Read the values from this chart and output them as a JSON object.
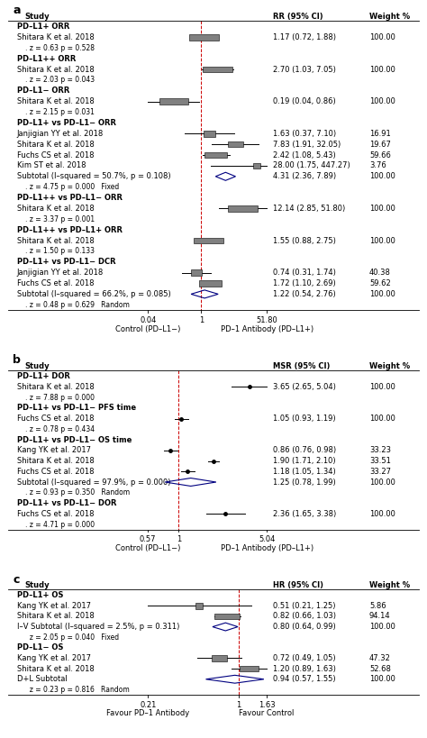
{
  "panel_a": {
    "title": "a",
    "col_header": "RR (95% CI)",
    "weight_header": "Weight %",
    "xlabel_left": "Control (PD–L1−)",
    "xlabel_right": "PD–1 Antibody (PD–L1+)",
    "xaxis_ticks": [
      0.04,
      1,
      51.8
    ],
    "xaxis_labels": [
      "0.04",
      "1",
      "51.80"
    ],
    "xmin": 0.04,
    "xmax": 51.8,
    "null_line": 1.0,
    "rows": [
      {
        "label": "PD–L1+ ORR",
        "type": "header"
      },
      {
        "label": "Shitara K et al. 2018",
        "type": "study",
        "est": 1.17,
        "lo": 0.72,
        "hi": 1.88,
        "weight": 4.0,
        "ci_text": "1.17 (0.72, 1.88)",
        "wt_text": "100.00",
        "square": true
      },
      {
        "label": ". z = 0.63 p = 0.528",
        "type": "stat"
      },
      {
        "label": "PD–L1++ ORR",
        "type": "header"
      },
      {
        "label": "Shitara K et al. 2018",
        "type": "study",
        "est": 2.7,
        "lo": 1.03,
        "hi": 7.05,
        "weight": 4.0,
        "ci_text": "2.70 (1.03, 7.05)",
        "wt_text": "100.00",
        "square": true
      },
      {
        "label": ". z = 2.03 p = 0.043",
        "type": "stat"
      },
      {
        "label": "PD–L1− ORR",
        "type": "header"
      },
      {
        "label": "Shitara K et al. 2018",
        "type": "study",
        "est": 0.19,
        "lo": 0.04,
        "hi": 0.86,
        "weight": 4.0,
        "ci_text": "0.19 (0.04, 0.86)",
        "wt_text": "100.00",
        "square": true
      },
      {
        "label": ". z = 2.15 p = 0.031",
        "type": "stat"
      },
      {
        "label": "PD–L1+ vs PD–L1− ORR",
        "type": "header"
      },
      {
        "label": "Janjigian YY et al. 2018",
        "type": "study",
        "est": 1.63,
        "lo": 0.37,
        "hi": 7.1,
        "weight": 1.5,
        "ci_text": "1.63 (0.37, 7.10)",
        "wt_text": "16.91",
        "square": true
      },
      {
        "label": "Shitara K et al. 2018",
        "type": "study",
        "est": 7.83,
        "lo": 1.91,
        "hi": 32.05,
        "weight": 2.0,
        "ci_text": "7.83 (1.91, 32.05)",
        "wt_text": "19.67",
        "square": true
      },
      {
        "label": "Fuchs CS et al. 2018",
        "type": "study",
        "est": 2.42,
        "lo": 1.08,
        "hi": 5.43,
        "weight": 3.0,
        "ci_text": "2.42 (1.08, 5.43)",
        "wt_text": "59.66",
        "square": true
      },
      {
        "label": "Kim ST et al. 2018",
        "type": "study",
        "est": 28.0,
        "lo": 1.75,
        "hi": 447.27,
        "weight": 1.0,
        "ci_text": "28.00 (1.75, 447.27)",
        "wt_text": "3.76",
        "square": true
      },
      {
        "label": "Subtotal (I–squared = 50.7%, p = 0.108)",
        "type": "subtotal",
        "est": 4.31,
        "lo": 2.36,
        "hi": 7.89,
        "ci_text": "4.31 (2.36, 7.89)",
        "wt_text": "100.00"
      },
      {
        "label": ". z = 4.75 p = 0.000   Fixed",
        "type": "stat"
      },
      {
        "label": "PD–L1++ vs PD–L1− ORR",
        "type": "header"
      },
      {
        "label": "Shitara K et al. 2018",
        "type": "study",
        "est": 12.14,
        "lo": 2.85,
        "hi": 51.8,
        "weight": 4.0,
        "ci_text": "12.14 (2.85, 51.80)",
        "wt_text": "100.00",
        "square": true
      },
      {
        "label": ". z = 3.37 p = 0.001",
        "type": "stat"
      },
      {
        "label": "PD–L1++ vs PD–L1+ ORR",
        "type": "header"
      },
      {
        "label": "Shitara K et al. 2018",
        "type": "study",
        "est": 1.55,
        "lo": 0.88,
        "hi": 2.75,
        "weight": 4.0,
        "ci_text": "1.55 (0.88, 2.75)",
        "wt_text": "100.00",
        "square": true
      },
      {
        "label": ". z = 1.50 p = 0.133",
        "type": "stat"
      },
      {
        "label": "PD–L1+ vs PD–L1− DCR",
        "type": "header"
      },
      {
        "label": "Janjigian YY et al. 2018",
        "type": "study",
        "est": 0.74,
        "lo": 0.31,
        "hi": 1.74,
        "weight": 1.5,
        "ci_text": "0.74 (0.31, 1.74)",
        "wt_text": "40.38",
        "square": true
      },
      {
        "label": "Fuchs CS et al. 2018",
        "type": "study",
        "est": 1.72,
        "lo": 1.1,
        "hi": 2.69,
        "weight": 3.0,
        "ci_text": "1.72 (1.10, 2.69)",
        "wt_text": "59.62",
        "square": true
      },
      {
        "label": "Subtotal (I–squared = 66.2%, p = 0.085)",
        "type": "subtotal",
        "est": 1.22,
        "lo": 0.54,
        "hi": 2.76,
        "ci_text": "1.22 (0.54, 2.76)",
        "wt_text": "100.00"
      },
      {
        "label": ". z = 0.48 p = 0.629   Random",
        "type": "stat"
      }
    ]
  },
  "panel_b": {
    "title": "b",
    "col_header": "MSR (95% CI)",
    "weight_header": "Weight %",
    "xlabel_left": "Control (PD–L1−)",
    "xlabel_right": "PD–1 Antibody (PD–L1+)",
    "xaxis_ticks": [
      0.57,
      1,
      5.04
    ],
    "xaxis_labels": [
      "0.57",
      "1",
      "5.04"
    ],
    "xmin": 0.57,
    "xmax": 5.04,
    "null_line": 1.0,
    "rows": [
      {
        "label": "PD–L1+ DOR",
        "type": "header"
      },
      {
        "label": "Shitara K et al. 2018",
        "type": "study",
        "est": 3.65,
        "lo": 2.65,
        "hi": 5.04,
        "weight": 4.0,
        "ci_text": "3.65 (2.65, 5.04)",
        "wt_text": "100.00",
        "square": false
      },
      {
        "label": ". z = 7.88 p = 0.000",
        "type": "stat"
      },
      {
        "label": "PD–L1+ vs PD–L1− PFS time",
        "type": "header"
      },
      {
        "label": "Fuchs CS et al. 2018",
        "type": "study",
        "est": 1.05,
        "lo": 0.93,
        "hi": 1.19,
        "weight": 2.5,
        "ci_text": "1.05 (0.93, 1.19)",
        "wt_text": "100.00",
        "square": false
      },
      {
        "label": ". z = 0.78 p = 0.434",
        "type": "stat"
      },
      {
        "label": "PD–L1+ vs PD–L1− OS time",
        "type": "header"
      },
      {
        "label": "Kang YK et al. 2017",
        "type": "study",
        "est": 0.86,
        "lo": 0.76,
        "hi": 0.98,
        "weight": 2.0,
        "ci_text": "0.86 (0.76, 0.98)",
        "wt_text": "33.23",
        "square": false
      },
      {
        "label": "Shitara K et al. 2018",
        "type": "study",
        "est": 1.9,
        "lo": 1.71,
        "hi": 2.1,
        "weight": 2.5,
        "ci_text": "1.90 (1.71, 2.10)",
        "wt_text": "33.51",
        "square": false
      },
      {
        "label": "Fuchs CS et al. 2018",
        "type": "study",
        "est": 1.18,
        "lo": 1.05,
        "hi": 1.34,
        "weight": 2.5,
        "ci_text": "1.18 (1.05, 1.34)",
        "wt_text": "33.27",
        "square": false
      },
      {
        "label": "Subtotal (I–squared = 97.9%, p = 0.000)",
        "type": "subtotal",
        "est": 1.25,
        "lo": 0.78,
        "hi": 1.99,
        "ci_text": "1.25 (0.78, 1.99)",
        "wt_text": "100.00"
      },
      {
        "label": ". z = 0.93 p = 0.350   Random",
        "type": "stat"
      },
      {
        "label": "PD–L1+ vs PD–L1− DOR",
        "type": "header"
      },
      {
        "label": "Fuchs CS et al. 2018",
        "type": "study",
        "est": 2.36,
        "lo": 1.65,
        "hi": 3.38,
        "weight": 3.0,
        "ci_text": "2.36 (1.65, 3.38)",
        "wt_text": "100.00",
        "square": false
      },
      {
        "label": ". z = 4.71 p = 0.000",
        "type": "stat"
      }
    ]
  },
  "panel_c": {
    "title": "c",
    "col_header": "HR (95% CI)",
    "weight_header": "Weight %",
    "xlabel_left": "Favour PD–1 Antibody",
    "xlabel_right": "Favour Control",
    "xaxis_ticks": [
      0.21,
      1,
      1.63
    ],
    "xaxis_labels": [
      "0.21",
      "1",
      "1.63"
    ],
    "xmin": 0.21,
    "xmax": 1.63,
    "null_line": 1.0,
    "rows": [
      {
        "label": "PD–L1+ OS",
        "type": "header"
      },
      {
        "label": "Kang YK et al. 2017",
        "type": "study",
        "est": 0.51,
        "lo": 0.21,
        "hi": 1.25,
        "weight": 1.0,
        "ci_text": "0.51 (0.21, 1.25)",
        "wt_text": "5.86",
        "square": true
      },
      {
        "label": "Shitara K et al. 2018",
        "type": "study",
        "est": 0.82,
        "lo": 0.66,
        "hi": 1.03,
        "weight": 3.5,
        "ci_text": "0.82 (0.66, 1.03)",
        "wt_text": "94.14",
        "square": true
      },
      {
        "label": "I–V Subtotal (I–squared = 2.5%, p = 0.311)",
        "type": "subtotal",
        "est": 0.8,
        "lo": 0.64,
        "hi": 0.99,
        "ci_text": "0.80 (0.64, 0.99)",
        "wt_text": "100.00"
      },
      {
        "label": "  z = 2.05 p = 0.040   Fixed",
        "type": "stat"
      },
      {
        "label": "PD–L1− OS",
        "type": "header"
      },
      {
        "label": "Kang YK et al. 2017",
        "type": "study",
        "est": 0.72,
        "lo": 0.49,
        "hi": 1.05,
        "weight": 2.0,
        "ci_text": "0.72 (0.49, 1.05)",
        "wt_text": "47.32",
        "square": true
      },
      {
        "label": "Shitara K et al. 2018",
        "type": "study",
        "est": 1.2,
        "lo": 0.89,
        "hi": 1.63,
        "weight": 2.5,
        "ci_text": "1.20 (0.89, 1.63)",
        "wt_text": "52.68",
        "square": true
      },
      {
        "label": "D+L Subtotal",
        "type": "subtotal",
        "est": 0.94,
        "lo": 0.57,
        "hi": 1.55,
        "ci_text": "0.94 (0.57, 1.55)",
        "wt_text": "100.00"
      },
      {
        "label": "  z = 0.23 p = 0.816   Random",
        "type": "stat"
      }
    ]
  },
  "bg_color": "#ffffff",
  "text_color": "#000000",
  "header_color": "#000000",
  "null_line_color": "#cc0000",
  "diamond_color": "#000080",
  "square_color": "#808080",
  "ci_line_color": "#000000",
  "fontsize": 6.0,
  "header_fontsize": 6.0
}
